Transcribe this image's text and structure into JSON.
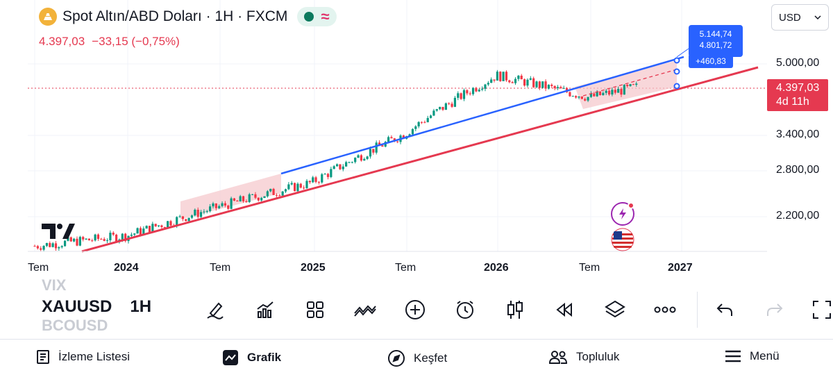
{
  "header": {
    "title": "Spot Altın/ABD Doları · 1H · FXCM",
    "price": "4.397,03",
    "change": "−33,15 (−0,75%)"
  },
  "currency": {
    "label": "USD"
  },
  "price_axis": [
    "5.000,00",
    "3.400,00",
    "2.800,00",
    "2.200,00"
  ],
  "last_price": {
    "value": "4.397,03",
    "countdown": "4d 11h"
  },
  "time_axis": [
    {
      "label": "Tem",
      "bold": false
    },
    {
      "label": "2024",
      "bold": true
    },
    {
      "label": "Tem",
      "bold": false
    },
    {
      "label": "2025",
      "bold": true
    },
    {
      "label": "Tem",
      "bold": false
    },
    {
      "label": "2026",
      "bold": true
    },
    {
      "label": "Tem",
      "bold": false
    },
    {
      "label": "2027",
      "bold": true
    }
  ],
  "projection": {
    "line1": "5.144,74",
    "line2": "4.801,72",
    "line3": "+460,83"
  },
  "chart_data": {
    "type": "line",
    "x": [
      "2023-07",
      "2024-01",
      "2024-07",
      "2025-01",
      "2025-07",
      "2026-01",
      "2026-07",
      "2027-01"
    ],
    "series": [
      {
        "values": [
          1950,
          2050,
          2360,
          2650,
          3350,
          4450,
          4000,
          4397
        ]
      }
    ],
    "ylim": [
      1900,
      5600
    ],
    "yscale": "log"
  },
  "toolbar": {
    "symbol_prev": "VIX",
    "symbol": "XAUUSD",
    "interval": "1H",
    "symbol_next": "BCOUSD",
    "tools": [
      "draw-pen-icon",
      "indicators-icon",
      "layout-grid-icon",
      "compare-icon",
      "add-icon",
      "alert-clock-icon",
      "candles-icon",
      "replay-icon",
      "layers-icon",
      "more-icon",
      "undo-icon",
      "redo-icon",
      "fullscreen-icon"
    ]
  },
  "nav": {
    "watchlist": "İzleme Listesi",
    "chart": "Grafik",
    "explore": "Keşfet",
    "community": "Topluluk",
    "menu": "Menü"
  }
}
